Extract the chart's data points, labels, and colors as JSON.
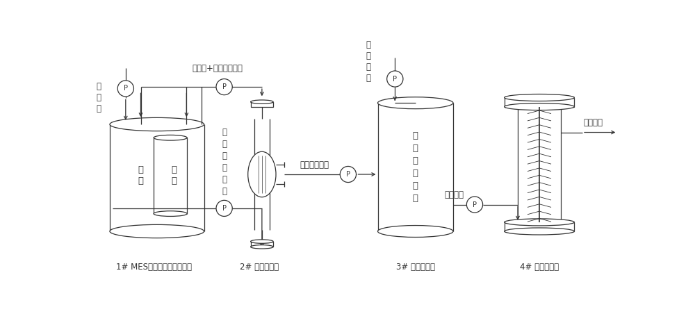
{
  "bg_color": "#ffffff",
  "line_color": "#333333",
  "labels": {
    "reactor1": "1# MES套筒状双腔室反应器",
    "reactor2": "2# 中空纤维膜",
    "reactor3": "3# 污水混合池",
    "reactor4": "4# 脱氮反应器",
    "anode": "阳\n极",
    "cathode": "阴\n极",
    "nutrient": "营\n养\n液",
    "acetate_bacteria": "乙酸菌+含乙酸营养液",
    "acetate_reflux": "乙\n酸\n菌\n液\n回\n流",
    "acetate_nutrient": "含乙酸营养液",
    "nitro_wastewater": "硝\n氨\n污\n水",
    "mix_content": "按\n脱\n氮\n比\n混\n合",
    "wastewater_in": "污水流入",
    "wastewater_out": "污水排出"
  },
  "figsize": [
    10.0,
    4.65
  ],
  "dpi": 100
}
